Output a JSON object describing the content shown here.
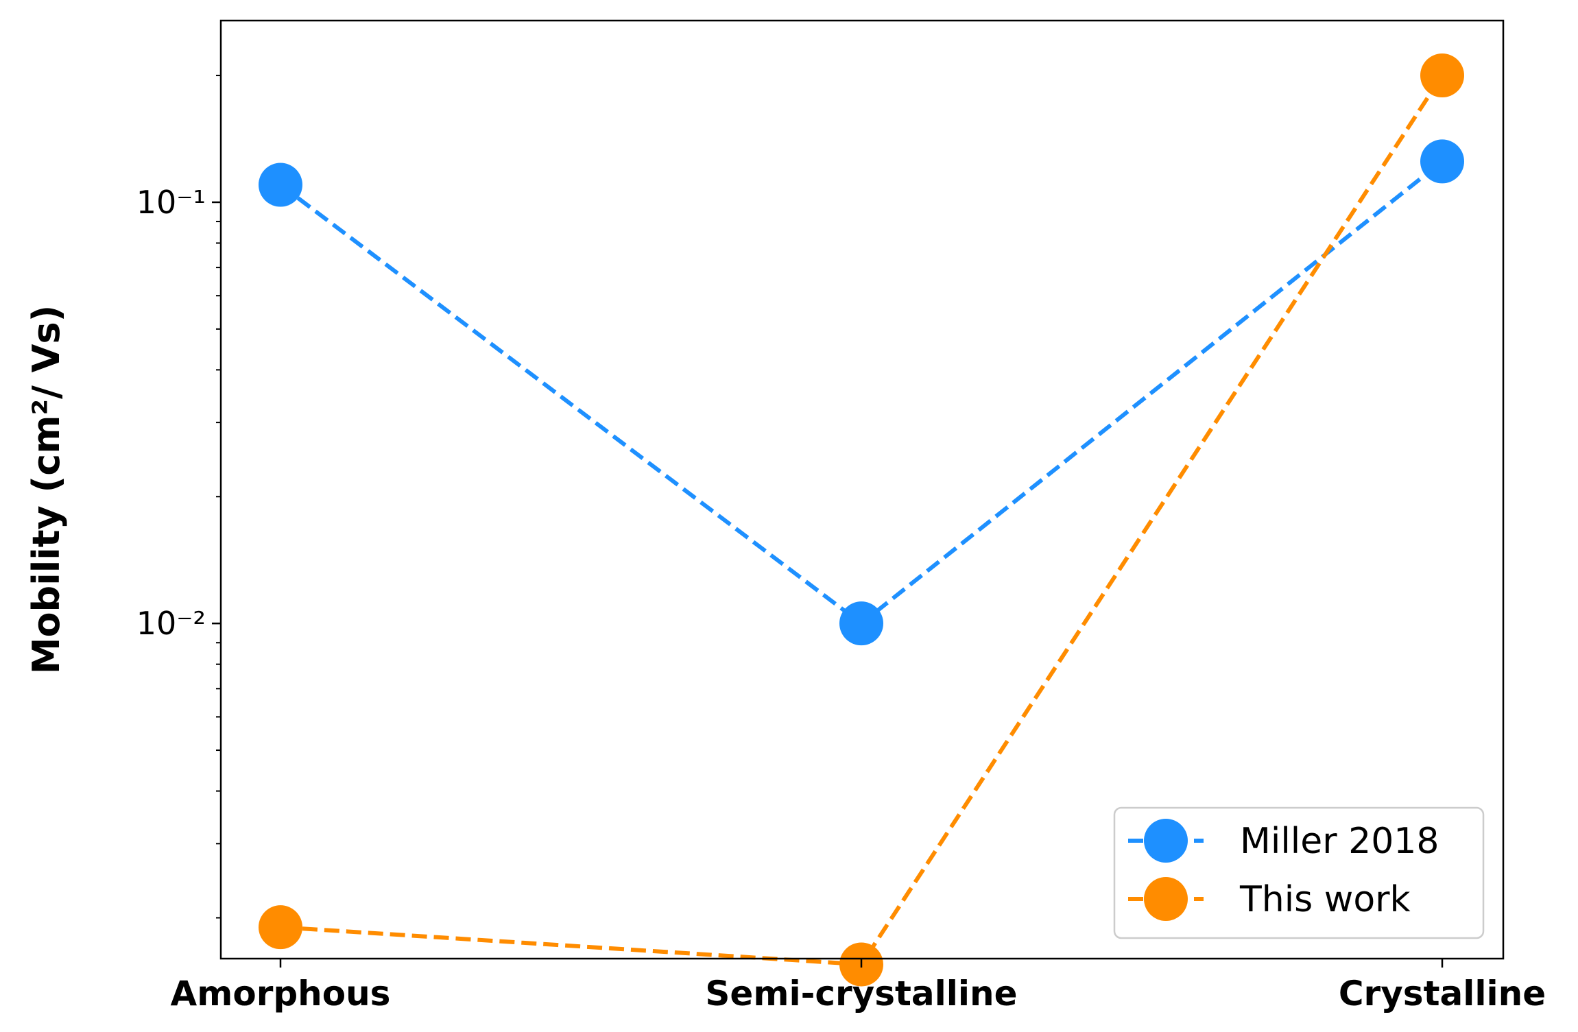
{
  "chart_data": {
    "type": "line",
    "title": "",
    "xlabel": "",
    "ylabel": "Mobility (cm²/ Vs)",
    "yscale": "log",
    "ylim": [
      0.0016,
      0.27
    ],
    "categories": [
      "Amorphous",
      "Semi-crystalline",
      "Crystalline"
    ],
    "ytick_labels": [
      "10⁻¹",
      "10⁻²"
    ],
    "yticks_major": [
      0.1,
      0.01
    ],
    "grid": false,
    "legend_position": "lower right",
    "series": [
      {
        "name": "Miller 2018",
        "color": "#1e90ff",
        "linestyle": "dashed",
        "marker": "circle",
        "values": [
          0.11,
          0.01,
          0.125
        ]
      },
      {
        "name": "This work",
        "color": "#ff8c00",
        "linestyle": "dashed",
        "marker": "circle",
        "values": [
          0.0019,
          0.00155,
          0.2
        ]
      }
    ]
  }
}
